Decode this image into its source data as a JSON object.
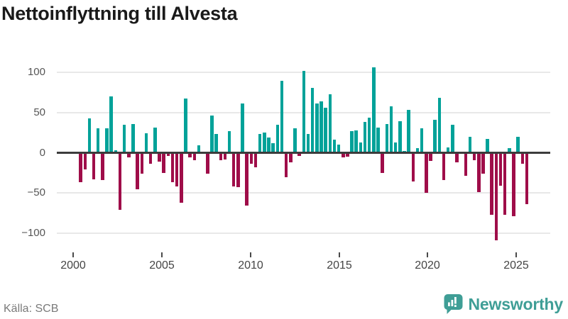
{
  "title": "Nettoinflyttning till Alvesta",
  "source": "Källa: SCB",
  "branding": {
    "name": "Newsworthy",
    "color": "#3f9e96"
  },
  "colors": {
    "positive": "#00a299",
    "negative": "#9f0d49",
    "grid": "#e8e8e8",
    "zero_line": "#3c3c3c",
    "axis_text": "#555555",
    "title_text": "#1a1a1a",
    "source_text": "#7a7a7a"
  },
  "chart_data": {
    "type": "bar",
    "title": "Nettoinflyttning till Alvesta",
    "frequency": "quarterly",
    "period_start": "2000 Q1",
    "period_end": "2025 Q3",
    "xlabel": "",
    "ylabel": "",
    "ylim": [
      -115,
      115
    ],
    "grid": "horizontal",
    "legend": "none",
    "y_ticks": [
      {
        "value": 100,
        "label": "100"
      },
      {
        "value": 50,
        "label": "50"
      },
      {
        "value": 0,
        "label": "0"
      },
      {
        "value": -50,
        "label": "−50"
      },
      {
        "value": -100,
        "label": "−100"
      }
    ],
    "x_tick_labels": [
      "2000",
      "2005",
      "2010",
      "2015",
      "2020",
      "2025"
    ],
    "values": [
      -37,
      -21,
      43,
      -33,
      30,
      -34,
      30,
      70,
      3,
      -71,
      35,
      -6,
      36,
      -45,
      -26,
      24,
      -14,
      31,
      -11,
      -25,
      -4,
      -37,
      -42,
      -62,
      67,
      -6,
      -9,
      9,
      0,
      -26,
      46,
      23,
      -9,
      -8,
      27,
      -42,
      -43,
      61,
      -66,
      -14,
      -18,
      23,
      25,
      19,
      12,
      35,
      89,
      -30,
      -12,
      30,
      -4,
      102,
      23,
      81,
      61,
      64,
      56,
      73,
      16,
      10,
      -6,
      -5,
      27,
      28,
      13,
      38,
      44,
      106,
      31,
      -25,
      36,
      58,
      13,
      39,
      2,
      53,
      -36,
      6,
      30,
      -50,
      -10,
      41,
      68,
      -34,
      7,
      35,
      -12,
      0,
      -29,
      20,
      -9,
      -49,
      -26,
      17,
      -77,
      -109,
      -41,
      -77,
      6,
      -79,
      20,
      -14,
      -64
    ]
  }
}
